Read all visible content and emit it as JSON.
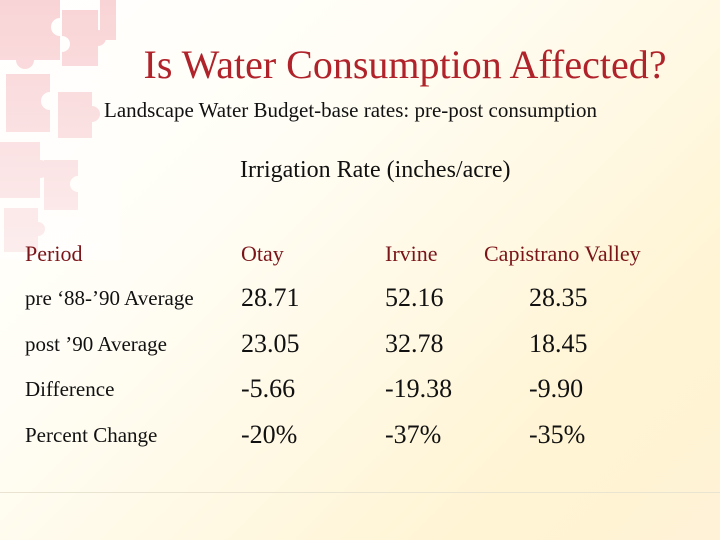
{
  "slide": {
    "title": "Is Water Consumption Affected?",
    "subtitle": "Landscape Water Budget-base rates: pre-post consumption",
    "table_title": "Irrigation Rate (inches/acre)"
  },
  "table": {
    "headers": [
      "Period",
      "Otay",
      "Irvine",
      "Capistrano Valley"
    ],
    "rows": [
      {
        "label": "pre ‘88-’90 Average",
        "values": [
          "28.71",
          "52.16",
          "28.35"
        ]
      },
      {
        "label": "post ’90 Average",
        "values": [
          "23.05",
          "32.78",
          "18.45"
        ]
      },
      {
        "label": "Difference",
        "values": [
          "-5.66",
          "-19.38",
          "-9.90"
        ]
      },
      {
        "label": "Percent Change",
        "values": [
          "-20%",
          "-37%",
          "-35%"
        ]
      }
    ]
  },
  "colors": {
    "title": "#b0232a",
    "decoration": "#f6c6c8",
    "background_warm": "#fff4d3"
  }
}
